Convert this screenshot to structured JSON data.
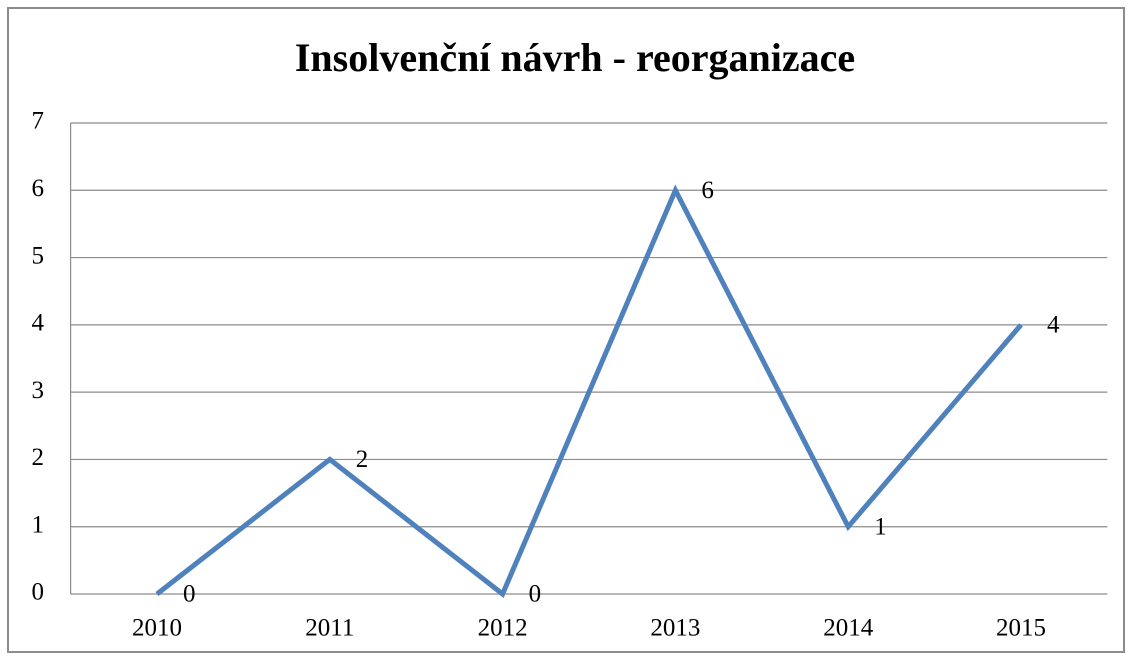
{
  "chart_data": {
    "type": "line",
    "title": "Insolvenční návrh - reorganizace",
    "categories": [
      "2010",
      "2011",
      "2012",
      "2013",
      "2014",
      "2015"
    ],
    "values": [
      0,
      2,
      0,
      6,
      1,
      4
    ],
    "color": "#4f81bd",
    "ylim": [
      0,
      7
    ],
    "yticks": [
      0,
      1,
      2,
      3,
      4,
      5,
      6,
      7
    ],
    "grid": true
  }
}
